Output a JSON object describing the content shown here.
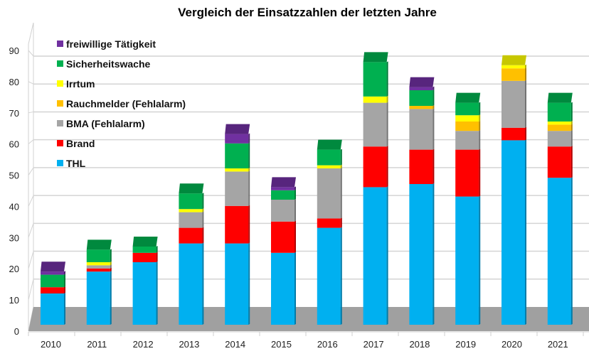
{
  "chart_data": {
    "type": "bar",
    "stacked": true,
    "style": "3d-column",
    "title": "Vergleich der Einsatzzahlen der letzten Jahre",
    "xlabel": "",
    "ylabel": "",
    "ylim": [
      0,
      90
    ],
    "yticks": [
      0,
      10,
      20,
      30,
      40,
      50,
      60,
      70,
      80,
      90
    ],
    "grid": true,
    "legend_position": "top-left",
    "categories": [
      "2010",
      "2011",
      "2012",
      "2013",
      "2014",
      "2015",
      "2016",
      "2017",
      "2018",
      "2019",
      "2020",
      "2021"
    ],
    "series": [
      {
        "name": "THL",
        "color": "#00B0F0",
        "values": [
          10,
          17,
          20,
          26,
          26,
          23,
          31,
          44,
          45,
          41,
          59,
          47
        ]
      },
      {
        "name": "Brand",
        "color": "#FF0000",
        "values": [
          2,
          1,
          3,
          5,
          12,
          10,
          3,
          13,
          11,
          15,
          4,
          10
        ]
      },
      {
        "name": "BMA (Fehlalarm)",
        "color": "#A5A5A5",
        "values": [
          0,
          1,
          0,
          5,
          11,
          7,
          16,
          14,
          13,
          6,
          15,
          5
        ]
      },
      {
        "name": "Rauchmelder (Fehlalarm)",
        "color": "#FFC000",
        "values": [
          0,
          0,
          0,
          0,
          0,
          0,
          0,
          0,
          1,
          3,
          4,
          2
        ]
      },
      {
        "name": "Irrtum",
        "color": "#FFFF00",
        "values": [
          0,
          1,
          0,
          1,
          1,
          0,
          1,
          2,
          0,
          2,
          1,
          1
        ]
      },
      {
        "name": "Sicherheitswache",
        "color": "#00B050",
        "values": [
          4,
          4,
          2,
          5,
          8,
          3,
          5,
          11,
          5,
          4,
          0,
          6
        ]
      },
      {
        "name": "freiwillige Tätigkeit",
        "color": "#7030A0",
        "values": [
          1,
          0,
          0,
          0,
          3,
          1,
          0,
          0,
          1,
          0,
          0,
          0
        ]
      }
    ],
    "floor_color": "#A0A0A0"
  }
}
